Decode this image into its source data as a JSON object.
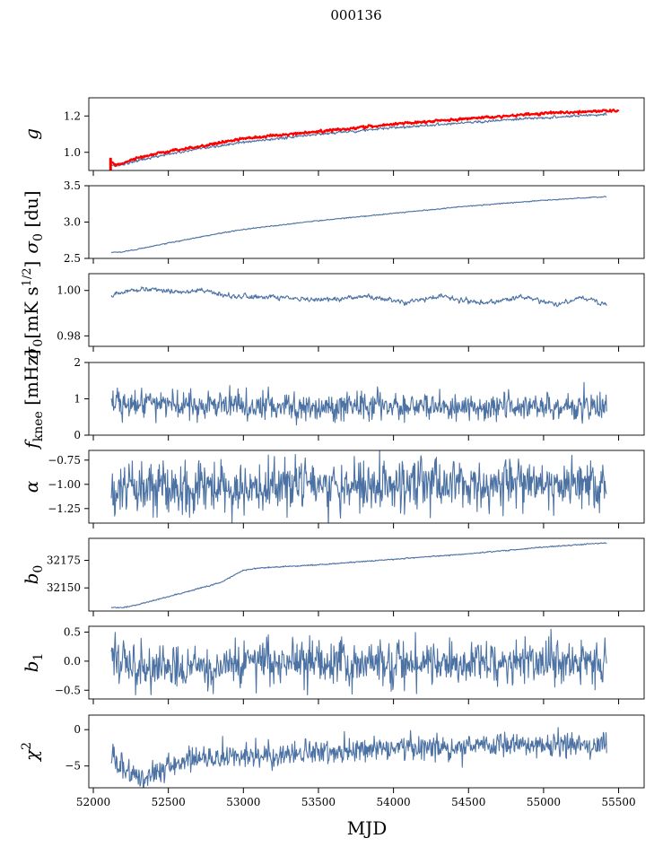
{
  "figure": {
    "suptitle": "000136",
    "xlabel": "MJD"
  },
  "colors": {
    "series": "#4c72a4",
    "reference": "#ff0000",
    "axes": "#000000"
  },
  "chart_data": {
    "type": "line",
    "xlim": [
      51970,
      55670
    ],
    "x_ticks": [
      52000,
      52500,
      53000,
      53500,
      54000,
      54500,
      55000,
      55500
    ],
    "x_range": [
      52120,
      55420
    ],
    "panels": [
      {
        "id": "g",
        "ylabel": "g",
        "ylim": [
          0.9,
          1.3
        ],
        "yticks": [
          1.0,
          1.2
        ],
        "ytick_labels": [
          "1.0",
          "1.2"
        ],
        "series": [
          {
            "color": "series",
            "keypoints": [
              [
                52120,
                0.93
              ],
              [
                52150,
                0.925
              ],
              [
                52300,
                0.955
              ],
              [
                52500,
                0.99
              ],
              [
                52800,
                1.03
              ],
              [
                53000,
                1.055
              ],
              [
                53500,
                1.1
              ],
              [
                54000,
                1.135
              ],
              [
                54500,
                1.165
              ],
              [
                55000,
                1.19
              ],
              [
                55420,
                1.21
              ]
            ],
            "noise": 0.003,
            "smooth": 0.3
          },
          {
            "color": "reference",
            "keypoints": [
              [
                52110,
                0.95
              ],
              [
                52150,
                0.93
              ],
              [
                52300,
                0.97
              ],
              [
                52500,
                1.005
              ],
              [
                52800,
                1.045
              ],
              [
                53000,
                1.075
              ],
              [
                53500,
                1.115
              ],
              [
                54000,
                1.155
              ],
              [
                54500,
                1.185
              ],
              [
                55000,
                1.215
              ],
              [
                55500,
                1.23
              ]
            ],
            "noise": 0.003,
            "smooth": 0.3,
            "width": 2.2,
            "spike": [
              52115,
              0.9,
              0.97
            ]
          }
        ]
      },
      {
        "id": "sigma0_du",
        "ylabel": "σ0 [du]",
        "ylim": [
          2.5,
          3.5
        ],
        "yticks": [
          2.5,
          3.0,
          3.5
        ],
        "ytick_labels": [
          "2.5",
          "3.0",
          "3.5"
        ],
        "series": [
          {
            "color": "series",
            "keypoints": [
              [
                52120,
                2.58
              ],
              [
                52200,
                2.59
              ],
              [
                52400,
                2.67
              ],
              [
                52800,
                2.83
              ],
              [
                53000,
                2.9
              ],
              [
                53500,
                3.02
              ],
              [
                54000,
                3.12
              ],
              [
                54500,
                3.22
              ],
              [
                55000,
                3.3
              ],
              [
                55420,
                3.35
              ]
            ],
            "noise": 0.003,
            "smooth": 0.3
          }
        ]
      },
      {
        "id": "sigma0_mk",
        "ylabel": "σ0[mK s^1/2]",
        "ylim": [
          0.9754,
          1.0074
        ],
        "yticks": [
          0.98,
          1.0
        ],
        "ytick_labels": [
          "0.98",
          "1.00"
        ],
        "series": [
          {
            "color": "series",
            "keypoints": [
              [
                52120,
                0.998
              ],
              [
                52350,
                1.001
              ],
              [
                52500,
                0.9995
              ],
              [
                52700,
                1.0
              ],
              [
                52900,
                0.9975
              ],
              [
                53200,
                0.997
              ],
              [
                53500,
                0.9955
              ],
              [
                53800,
                0.9975
              ],
              [
                54100,
                0.9945
              ],
              [
                54300,
                0.9975
              ],
              [
                54600,
                0.9945
              ],
              [
                54900,
                0.997
              ],
              [
                55100,
                0.9935
              ],
              [
                55250,
                0.997
              ],
              [
                55420,
                0.9935
              ]
            ],
            "noise": 0.0006,
            "smooth": 0.5
          }
        ]
      },
      {
        "id": "fknee",
        "ylabel": "fknee [mHz]",
        "ylim": [
          0,
          2
        ],
        "yticks": [
          0,
          1,
          2
        ],
        "ytick_labels": [
          "0",
          "1",
          "2"
        ],
        "series": [
          {
            "color": "series",
            "keypoints": [
              [
                52120,
                0.85
              ],
              [
                53000,
                0.83
              ],
              [
                54000,
                0.8
              ],
              [
                55420,
                0.78
              ]
            ],
            "noise": 0.13,
            "smooth": 0.1,
            "spikes": [
              [
                52130,
                1.22
              ],
              [
                52650,
                1.28
              ],
              [
                55270,
                1.45
              ],
              [
                53800,
                0.45
              ]
            ]
          }
        ]
      },
      {
        "id": "alpha",
        "ylabel": "α",
        "ylim": [
          -1.4,
          -0.65
        ],
        "yticks": [
          -1.25,
          -1.0,
          -0.75
        ],
        "ytick_labels": [
          "−1.25",
          "−1.00",
          "−0.75"
        ],
        "series": [
          {
            "color": "series",
            "keypoints": [
              [
                52120,
                -1.05
              ],
              [
                53000,
                -1.02
              ],
              [
                54000,
                -1.0
              ],
              [
                55420,
                -1.0
              ]
            ],
            "noise": 0.09,
            "smooth": 0.1,
            "spikes": [
              [
                52400,
                -1.34
              ],
              [
                52700,
                -0.8
              ],
              [
                53800,
                -0.76
              ]
            ]
          }
        ]
      },
      {
        "id": "b0",
        "ylabel": "b0",
        "ylim": [
          32129,
          32195
        ],
        "yticks": [
          32150,
          32175
        ],
        "ytick_labels": [
          "32150",
          "32175"
        ],
        "series": [
          {
            "color": "series",
            "keypoints": [
              [
                52120,
                32132.5
              ],
              [
                52200,
                32132
              ],
              [
                52300,
                32135
              ],
              [
                52500,
                32142
              ],
              [
                52800,
                32153
              ],
              [
                52850,
                32155
              ],
              [
                53000,
                32166
              ],
              [
                53100,
                32168
              ],
              [
                53500,
                32171
              ],
              [
                54000,
                32176
              ],
              [
                54500,
                32181
              ],
              [
                55000,
                32187
              ],
              [
                55420,
                32191
              ]
            ],
            "noise": 0.2,
            "smooth": 0.2
          }
        ]
      },
      {
        "id": "b1",
        "ylabel": "b1",
        "ylim": [
          -0.65,
          0.6
        ],
        "yticks": [
          -0.5,
          0.0,
          0.5
        ],
        "ytick_labels": [
          "−0.5",
          "0.0",
          "0.5"
        ],
        "series": [
          {
            "color": "series",
            "keypoints": [
              [
                52120,
                0.05
              ],
              [
                52300,
                -0.15
              ],
              [
                52500,
                -0.1
              ],
              [
                52800,
                -0.15
              ],
              [
                53000,
                -0.05
              ],
              [
                53500,
                -0.02
              ],
              [
                54000,
                -0.05
              ],
              [
                54500,
                -0.02
              ],
              [
                55000,
                -0.02
              ],
              [
                55420,
                0.0
              ]
            ],
            "noise": 0.13,
            "smooth": 0.1,
            "spikes": [
              [
                52280,
                -0.58
              ],
              [
                52800,
                -0.56
              ],
              [
                55050,
                0.55
              ],
              [
                55410,
                0.4
              ]
            ]
          }
        ]
      },
      {
        "id": "chi2",
        "ylabel": "χ2",
        "ylim": [
          -8,
          2
        ],
        "yticks": [
          -5,
          0
        ],
        "ytick_labels": [
          "−5",
          "0"
        ],
        "series": [
          {
            "color": "series",
            "keypoints": [
              [
                52120,
                -4.0
              ],
              [
                52250,
                -6.0
              ],
              [
                52350,
                -6.5
              ],
              [
                52500,
                -5.0
              ],
              [
                52700,
                -4.0
              ],
              [
                53000,
                -3.8
              ],
              [
                53500,
                -3.0
              ],
              [
                54000,
                -2.5
              ],
              [
                54500,
                -2.2
              ],
              [
                55000,
                -2.0
              ],
              [
                55420,
                -2.1
              ]
            ],
            "noise": 0.6,
            "smooth": 0.15,
            "spikes": [
              [
                52300,
                -7.5
              ]
            ]
          }
        ]
      }
    ]
  }
}
